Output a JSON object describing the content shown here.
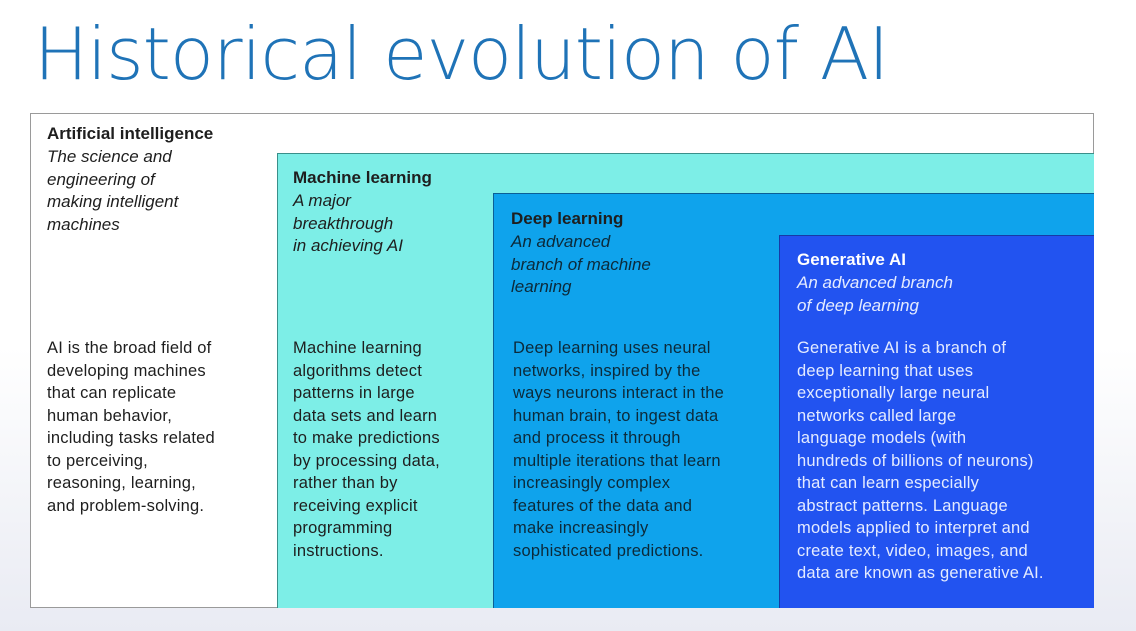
{
  "title": "Historical evolution of AI",
  "layers": {
    "ai": {
      "heading": "Artificial intelligence",
      "subtitle": "The science and\nengineering of\nmaking intelligent\nmachines",
      "description": "AI is the broad field of\ndeveloping machines\nthat can replicate\nhuman behavior,\nincluding tasks related\nto perceiving,\nreasoning, learning,\nand problem-solving.",
      "color": "#ffffff"
    },
    "ml": {
      "heading": "Machine learning",
      "subtitle": "A major\nbreakthrough\nin achieving AI",
      "description": "Machine learning\nalgorithms detect\npatterns in large\ndata sets and learn\nto make predictions\nby processing data,\nrather than by\nreceiving explicit\nprogramming\ninstructions.",
      "color": "#7deee7"
    },
    "dl": {
      "heading": "Deep learning",
      "subtitle": "An advanced\nbranch of machine\nlearning",
      "description": "Deep learning uses neural\nnetworks, inspired by the\nways neurons interact in the\nhuman brain, to ingest data\nand process it through\nmultiple iterations that learn\nincreasingly complex\nfeatures of the data and\nmake increasingly\nsophisticated predictions.",
      "color": "#0fa3ec"
    },
    "gen": {
      "heading": "Generative AI",
      "subtitle": "An advanced branch\nof deep learning",
      "description": "Generative AI is a branch of\ndeep learning that uses\nexceptionally large neural\nnetworks called large\nlanguage models (with\nhundreds of billions of neurons)\nthat can learn especially\nabstract patterns. Language\nmodels applied to interpret and\ncreate text, video, images, and\ndata are known as generative AI.",
      "color": "#2253f0"
    }
  }
}
